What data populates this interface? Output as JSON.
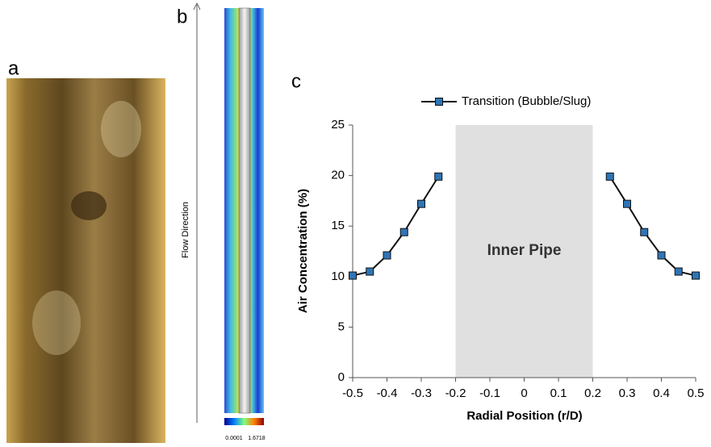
{
  "panel_labels": [
    "a",
    "b",
    "c"
  ],
  "contour": {
    "axis_label": "Flow Direction",
    "colorbar": {
      "min": 0.0001,
      "max": 1.6718
    }
  },
  "chart_data": {
    "type": "line",
    "x": [
      -0.5,
      -0.45,
      -0.4,
      -0.35,
      -0.3,
      -0.25,
      0,
      0.25,
      0.3,
      0.35,
      0.4,
      0.45,
      0.5
    ],
    "series": [
      {
        "name": "Transition (Bubble/Slug)",
        "color": "#2e75b6",
        "values": [
          10.1,
          10.5,
          12.1,
          14.4,
          17.2,
          19.9,
          null,
          19.9,
          17.2,
          14.4,
          12.1,
          10.5,
          10.1
        ]
      }
    ],
    "xlabel": "Radial Position (r/D)",
    "ylabel": "Air Concentration (%)",
    "xlim": [
      -0.5,
      0.5
    ],
    "xticks": [
      -0.5,
      -0.4,
      -0.3,
      -0.2,
      -0.1,
      0,
      0.1,
      0.2,
      0.3,
      0.4,
      0.5
    ],
    "ylim": [
      0,
      25
    ],
    "yticks": [
      0,
      5,
      10,
      15,
      20,
      25
    ],
    "shaded_region": {
      "x": [
        -0.2,
        0.2
      ],
      "label": "Inner Pipe"
    },
    "legend": "top"
  }
}
